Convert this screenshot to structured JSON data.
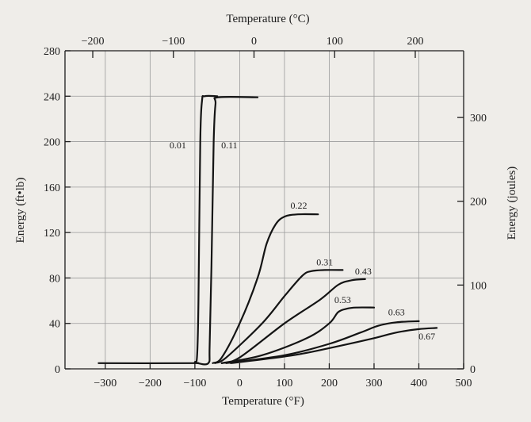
{
  "chart_data": {
    "type": "line",
    "title": "",
    "top_axis_label": "Temperature (°C)",
    "xlabel": "Temperature (°F)",
    "ylabel": "Energy (ft•lb)",
    "right_axis_label": "Energy (joules)",
    "xlim": [
      -390,
      500
    ],
    "ylim": [
      0,
      280
    ],
    "x_ticks": [
      -300,
      -200,
      -100,
      0,
      100,
      200,
      300,
      400,
      500
    ],
    "y_ticks": [
      0,
      40,
      80,
      120,
      160,
      200,
      240,
      280
    ],
    "top_ticks_celsius": [
      -200,
      -100,
      0,
      100,
      200
    ],
    "right_ticks_joules": [
      0,
      100,
      200,
      300
    ],
    "grid": true,
    "series": [
      {
        "name": "0.01",
        "x": [
          -315,
          -110,
          -100,
          -95,
          -92,
          -88,
          -84,
          -78,
          -50
        ],
        "y": [
          5,
          5,
          6,
          12,
          60,
          200,
          236,
          240,
          240
        ]
      },
      {
        "name": "0.11",
        "x": [
          -95,
          -70,
          -67,
          -63,
          -58,
          -54,
          -48,
          40
        ],
        "y": [
          5,
          5,
          20,
          90,
          200,
          233,
          239,
          239
        ]
      },
      {
        "name": "0.22",
        "x": [
          -60,
          -40,
          0,
          40,
          60,
          80,
          100,
          130,
          175
        ],
        "y": [
          5,
          10,
          40,
          80,
          110,
          127,
          134,
          136,
          136
        ]
      },
      {
        "name": "0.31",
        "x": [
          -55,
          -30,
          50,
          100,
          140,
          160,
          190,
          230
        ],
        "y": [
          5,
          10,
          40,
          64,
          82,
          86,
          87,
          87
        ]
      },
      {
        "name": "0.43",
        "x": [
          -40,
          0,
          100,
          180,
          220,
          250,
          280
        ],
        "y": [
          5,
          10,
          40,
          61,
          74,
          78,
          79
        ]
      },
      {
        "name": "0.53",
        "x": [
          -40,
          50,
          150,
          200,
          220,
          240,
          260,
          300
        ],
        "y": [
          5,
          12,
          27,
          40,
          50,
          53,
          54,
          54
        ]
      },
      {
        "name": "0.63",
        "x": [
          -30,
          100,
          200,
          270,
          310,
          350,
          400
        ],
        "y": [
          5,
          12,
          22,
          32,
          38,
          41,
          42
        ]
      },
      {
        "name": "0.67",
        "x": [
          -20,
          120,
          220,
          300,
          350,
          400,
          440
        ],
        "y": [
          5,
          12,
          20,
          27,
          32,
          35,
          36
        ]
      }
    ],
    "labels": [
      {
        "text": "0.01",
        "x": -138,
        "y": 194
      },
      {
        "text": "0.11",
        "x": -23,
        "y": 194
      },
      {
        "text": "0.22",
        "x": 132,
        "y": 141
      },
      {
        "text": "0.31",
        "x": 190,
        "y": 91
      },
      {
        "text": "0.43",
        "x": 276,
        "y": 83
      },
      {
        "text": "0.53",
        "x": 230,
        "y": 58
      },
      {
        "text": "0.63",
        "x": 350,
        "y": 47
      },
      {
        "text": "0.67",
        "x": 418,
        "y": 26
      }
    ]
  }
}
